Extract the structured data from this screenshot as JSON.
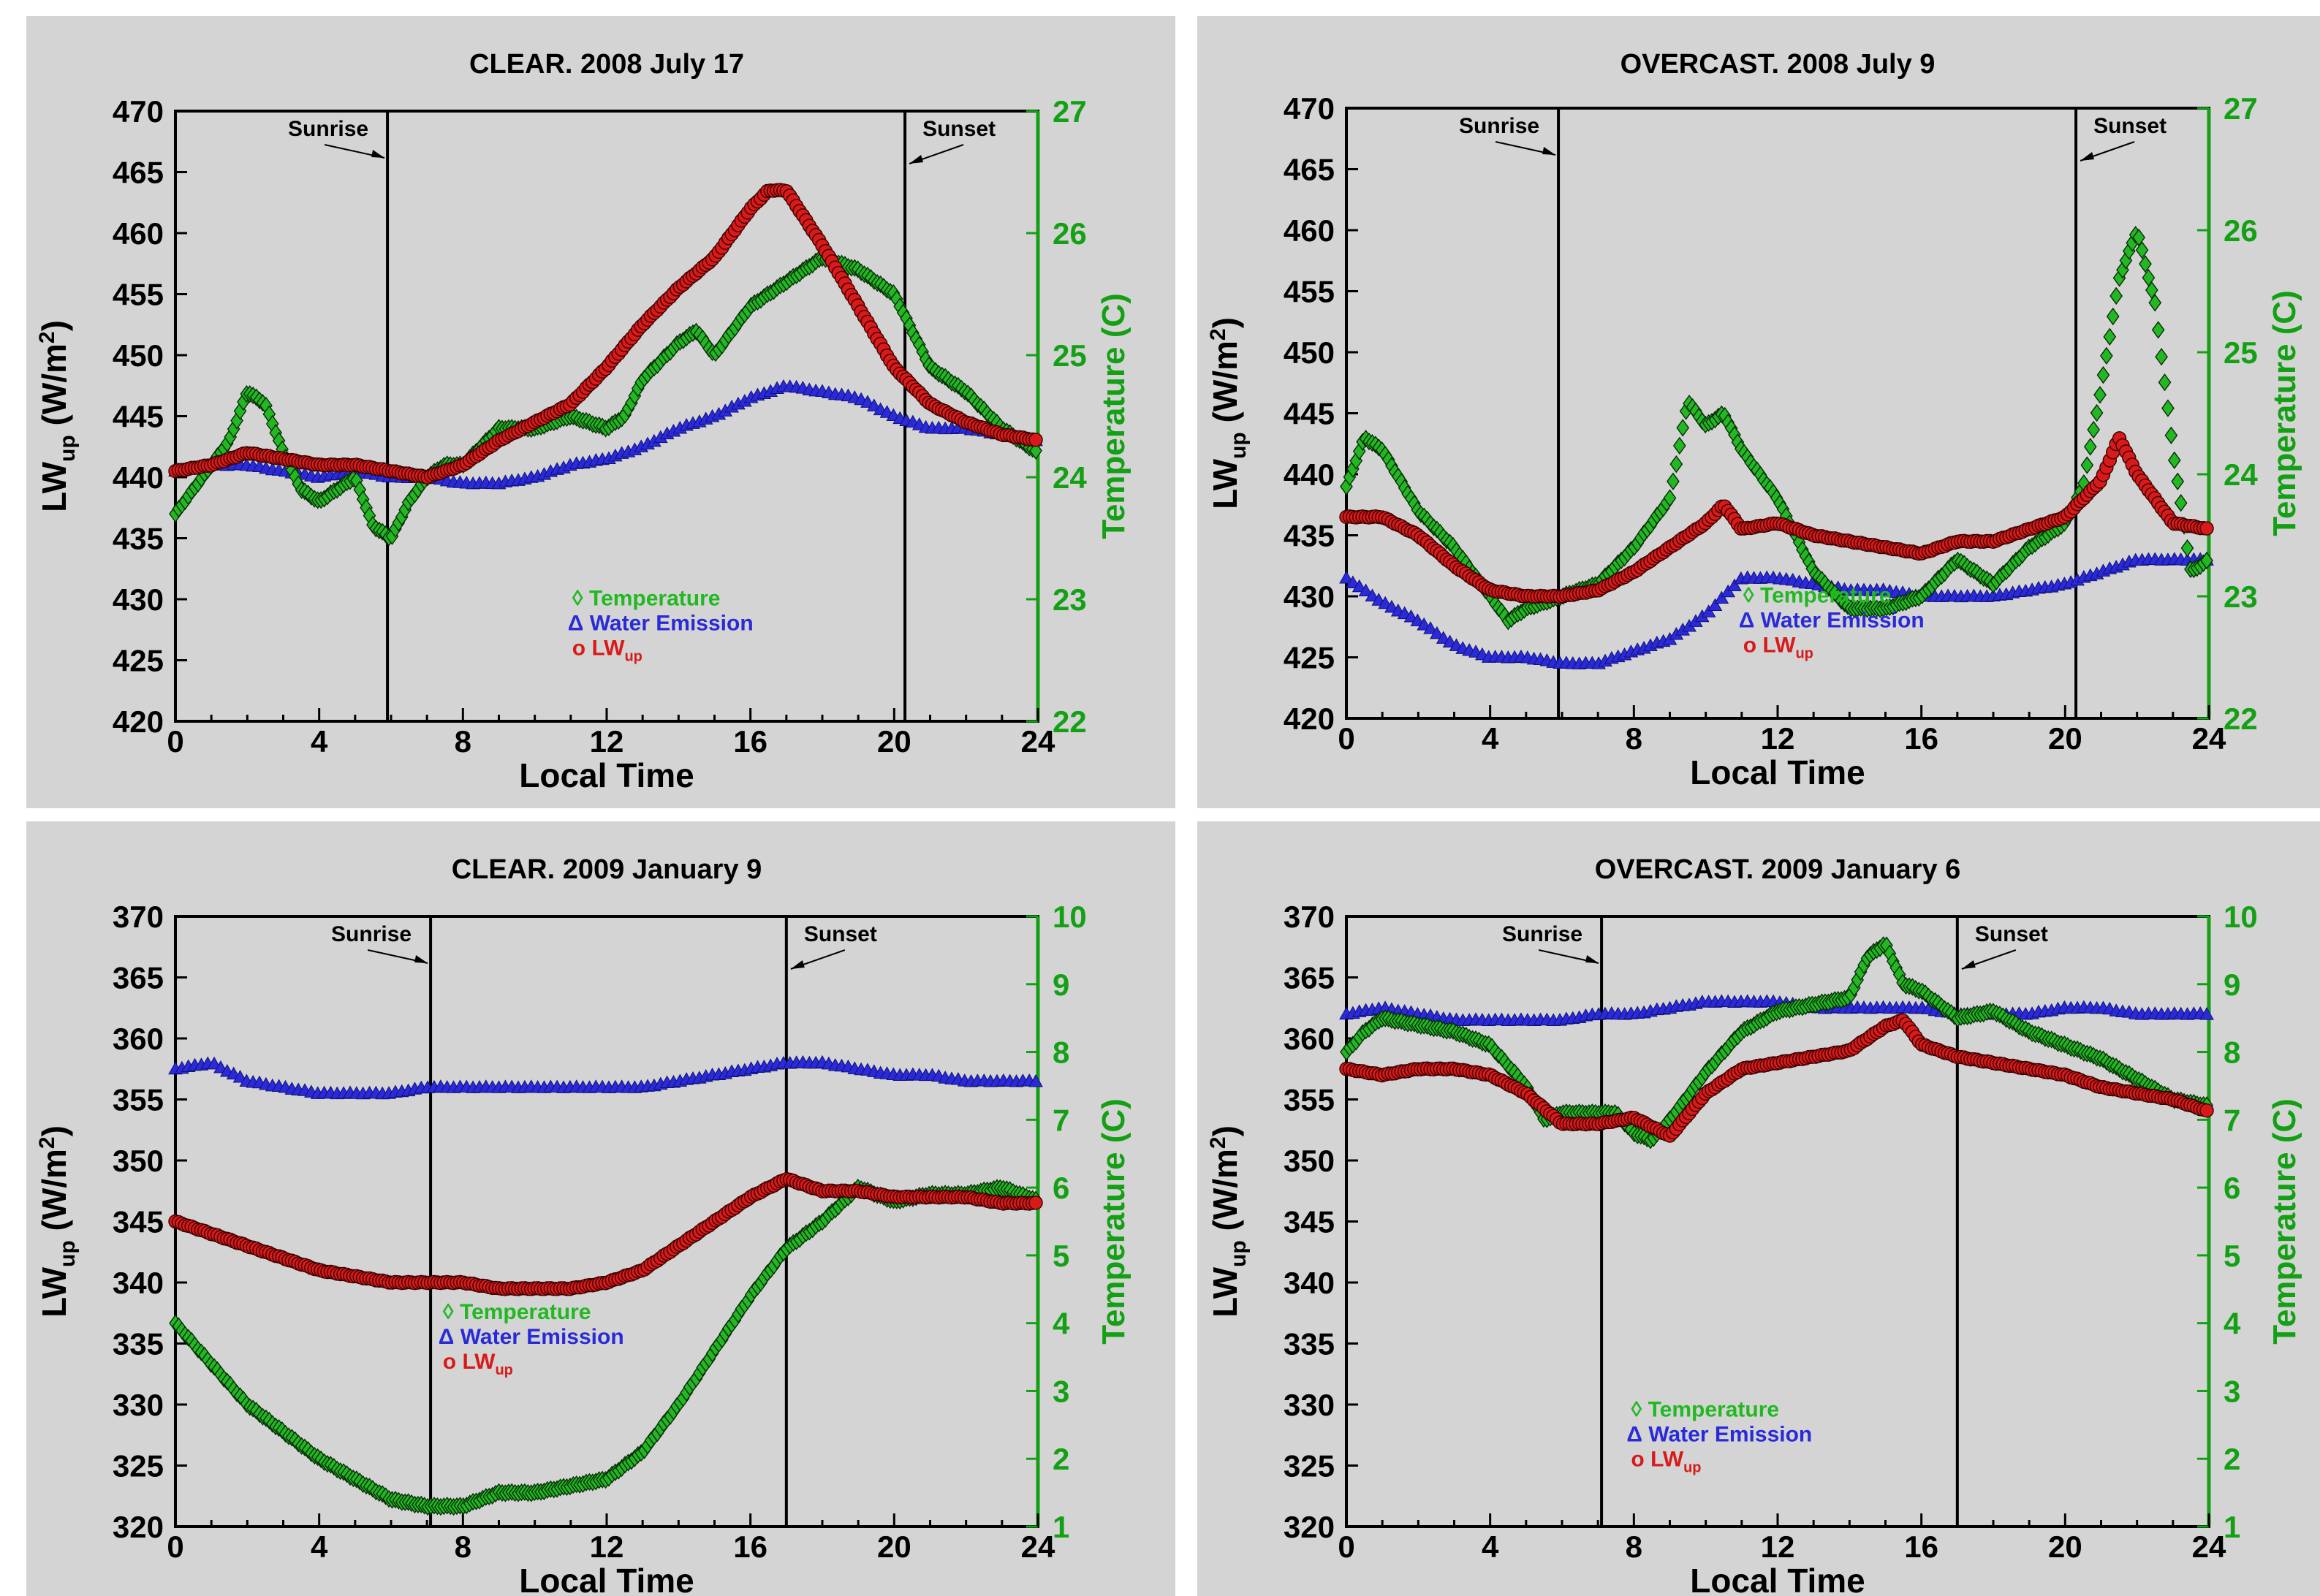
{
  "colors": {
    "temperature": "#22b822",
    "water_emission": "#2a2ad8",
    "lw_up": "#d81a1a",
    "right_axis": "#14a014",
    "panel_background": "#d4d4d4"
  },
  "legend_labels": {
    "temperature_symbol": "◊",
    "temperature": "Temperature",
    "water_symbol": "Δ",
    "water": "Water Emission",
    "lw_symbol": "o",
    "lw_main": "LW",
    "lw_sub": "up"
  },
  "axis_text": {
    "xlabel": "Local Time",
    "ylabel_main": "LW",
    "ylabel_sub": "up",
    "ylabel_unit_open": " (W/m",
    "ylabel_unit_sup": "2",
    "ylabel_unit_close": ")",
    "y2label": "Temperature (C)",
    "sunrise": "Sunrise",
    "sunset": "Sunset"
  },
  "chart_data": [
    {
      "type": "scatter",
      "title": "CLEAR.  2008 July 17",
      "x_ticks": [
        0,
        4,
        8,
        12,
        16,
        20,
        24
      ],
      "xlim": [
        0,
        24
      ],
      "ylim": [
        420,
        470
      ],
      "y_ticks": [
        420,
        425,
        430,
        435,
        440,
        445,
        450,
        455,
        460,
        465,
        470
      ],
      "y2lim": [
        22,
        27
      ],
      "y2_ticks": [
        22,
        23,
        24,
        25,
        26,
        27
      ],
      "sunrise": 5.9,
      "sunset": 20.3,
      "legend_position": "center-bottom",
      "series": [
        {
          "key": "temperature",
          "axis": "right",
          "x": [
            0,
            0.5,
            1,
            1.5,
            2,
            2.5,
            3,
            3.5,
            4,
            4.5,
            5,
            5.5,
            6,
            6.5,
            7,
            7.5,
            8,
            9,
            10,
            11,
            12,
            12.5,
            13,
            14,
            14.5,
            15,
            16,
            17,
            18,
            19,
            20,
            20.5,
            21,
            22,
            23,
            24
          ],
          "y": [
            23.7,
            23.9,
            24.1,
            24.3,
            24.7,
            24.6,
            24.2,
            23.9,
            23.8,
            23.9,
            24.0,
            23.6,
            23.5,
            23.8,
            24.0,
            24.1,
            24.1,
            24.4,
            24.4,
            24.5,
            24.4,
            24.5,
            24.8,
            25.1,
            25.2,
            25.0,
            25.4,
            25.6,
            25.8,
            25.7,
            25.5,
            25.2,
            24.9,
            24.7,
            24.4,
            24.2
          ]
        },
        {
          "key": "water_emission",
          "axis": "left",
          "x": [
            0,
            1,
            2,
            3,
            4,
            5,
            6,
            7,
            8,
            9,
            10,
            11,
            12,
            13,
            14,
            15,
            16,
            17,
            18,
            19,
            20,
            21,
            22,
            23,
            24
          ],
          "y": [
            440.5,
            441,
            441,
            440.5,
            440,
            440.5,
            440,
            440,
            439.5,
            439.5,
            440,
            441,
            441.5,
            442.5,
            444,
            445,
            446.5,
            447.5,
            447,
            446.5,
            445,
            444,
            444,
            443.5,
            443
          ]
        },
        {
          "key": "lw_up",
          "axis": "left",
          "x": [
            0,
            1,
            2,
            3,
            4,
            5,
            6,
            7,
            8,
            9,
            10,
            11,
            12,
            13,
            14,
            15,
            16,
            16.5,
            17,
            18,
            19,
            20,
            21,
            22,
            23,
            24
          ],
          "y": [
            440.5,
            441,
            442,
            441.5,
            441,
            441,
            440.5,
            440,
            441,
            443,
            444.5,
            446,
            449,
            452.5,
            455.5,
            458,
            462,
            463.5,
            463.5,
            459,
            454,
            449,
            446,
            444.5,
            443.5,
            443
          ]
        }
      ]
    },
    {
      "type": "scatter",
      "title": "OVERCAST.  2008 July 9",
      "x_ticks": [
        0,
        4,
        8,
        12,
        16,
        20,
        24
      ],
      "xlim": [
        0,
        24
      ],
      "ylim": [
        420,
        470
      ],
      "y_ticks": [
        420,
        425,
        430,
        435,
        440,
        445,
        450,
        455,
        460,
        465,
        470
      ],
      "y2lim": [
        22,
        27
      ],
      "y2_ticks": [
        22,
        23,
        24,
        25,
        26,
        27
      ],
      "sunrise": 5.9,
      "sunset": 20.3,
      "legend_position": "center-bottom",
      "series": [
        {
          "key": "temperature",
          "axis": "right",
          "x": [
            0,
            0.5,
            1,
            2,
            3,
            4,
            4.5,
            5,
            6,
            7,
            8,
            9,
            9.5,
            10,
            10.5,
            11,
            12,
            13,
            14,
            15,
            16,
            17,
            18,
            19,
            20,
            20.5,
            21,
            21.5,
            22,
            22.5,
            23,
            23.5,
            24
          ],
          "y": [
            23.9,
            24.3,
            24.2,
            23.7,
            23.4,
            23.0,
            22.8,
            22.9,
            23.0,
            23.1,
            23.4,
            23.8,
            24.6,
            24.4,
            24.5,
            24.2,
            23.8,
            23.2,
            22.9,
            22.9,
            23.0,
            23.3,
            23.1,
            23.4,
            23.6,
            23.9,
            24.7,
            25.6,
            26.0,
            25.4,
            24.2,
            23.2,
            23.3
          ]
        },
        {
          "key": "water_emission",
          "axis": "left",
          "x": [
            0,
            1,
            2,
            3,
            4,
            5,
            6,
            7,
            8,
            9,
            10,
            11,
            12,
            13,
            14,
            15,
            16,
            17,
            18,
            19,
            20,
            21,
            22,
            23,
            24
          ],
          "y": [
            431.5,
            429.5,
            428,
            426,
            425,
            425,
            424.5,
            424.5,
            425.5,
            426.5,
            428.5,
            431.5,
            431.5,
            431,
            430.5,
            430.5,
            430,
            430,
            430,
            430.5,
            431,
            432,
            433,
            433,
            433
          ]
        },
        {
          "key": "lw_up",
          "axis": "left",
          "x": [
            0,
            1,
            2,
            3,
            4,
            5,
            6,
            7,
            8,
            9,
            10,
            10.5,
            11,
            12,
            13,
            14,
            15,
            16,
            17,
            18,
            19,
            20,
            21,
            21.5,
            22,
            23,
            24
          ],
          "y": [
            436.5,
            436.5,
            435,
            432.5,
            430.5,
            430,
            430,
            430.5,
            432,
            434,
            436,
            437.5,
            435.5,
            436,
            435,
            434.5,
            434,
            433.5,
            434.5,
            434.5,
            435.5,
            436.5,
            439.5,
            443,
            440,
            436,
            435.5
          ]
        }
      ]
    },
    {
      "type": "scatter",
      "title": "CLEAR.  2009 January 9",
      "x_ticks": [
        0,
        4,
        8,
        12,
        16,
        20,
        24
      ],
      "xlim": [
        0,
        24
      ],
      "ylim": [
        320,
        370
      ],
      "y_ticks": [
        320,
        325,
        330,
        335,
        340,
        345,
        350,
        355,
        360,
        365,
        370
      ],
      "y2lim": [
        1,
        10
      ],
      "y2_ticks": [
        1,
        2,
        3,
        4,
        5,
        6,
        7,
        8,
        9,
        10
      ],
      "sunrise": 7.1,
      "sunset": 17.0,
      "legend_position": "center",
      "series": [
        {
          "key": "temperature",
          "axis": "right",
          "x": [
            0,
            1,
            2,
            3,
            4,
            5,
            6,
            7,
            8,
            9,
            10,
            11,
            12,
            13,
            14,
            15,
            16,
            17,
            18,
            19,
            20,
            21,
            22,
            23,
            24
          ],
          "y": [
            4.0,
            3.4,
            2.8,
            2.4,
            2.0,
            1.7,
            1.4,
            1.3,
            1.3,
            1.5,
            1.5,
            1.6,
            1.7,
            2.1,
            2.8,
            3.6,
            4.4,
            5.1,
            5.5,
            6.0,
            5.8,
            5.9,
            5.9,
            6.0,
            5.8
          ]
        },
        {
          "key": "water_emission",
          "axis": "left",
          "x": [
            0,
            1,
            2,
            3,
            4,
            5,
            6,
            7,
            8,
            9,
            10,
            11,
            12,
            13,
            14,
            15,
            16,
            17,
            18,
            19,
            20,
            21,
            22,
            23,
            24
          ],
          "y": [
            357.5,
            358,
            356.5,
            356,
            355.5,
            355.5,
            355.5,
            356,
            356,
            356,
            356,
            356,
            356,
            356,
            356.5,
            357,
            357.5,
            358,
            358,
            357.5,
            357,
            357,
            356.5,
            356.5,
            356.5
          ]
        },
        {
          "key": "lw_up",
          "axis": "left",
          "x": [
            0,
            1,
            2,
            3,
            4,
            5,
            6,
            7,
            8,
            9,
            10,
            11,
            12,
            13,
            14,
            15,
            16,
            17,
            18,
            19,
            20,
            21,
            22,
            23,
            24
          ],
          "y": [
            345,
            344,
            343,
            342,
            341,
            340.5,
            340,
            340,
            340,
            339.5,
            339.5,
            339.5,
            340,
            341,
            343,
            345,
            347,
            348.5,
            347.5,
            347.5,
            347,
            347,
            347,
            346.5,
            346.5
          ]
        }
      ]
    },
    {
      "type": "scatter",
      "title": "OVERCAST.  2009 January 6",
      "x_ticks": [
        0,
        4,
        8,
        12,
        16,
        20,
        24
      ],
      "xlim": [
        0,
        24
      ],
      "ylim": [
        320,
        370
      ],
      "y_ticks": [
        320,
        325,
        330,
        335,
        340,
        345,
        350,
        355,
        360,
        365,
        370
      ],
      "y2lim": [
        1,
        10
      ],
      "y2_ticks": [
        1,
        2,
        3,
        4,
        5,
        6,
        7,
        8,
        9,
        10
      ],
      "sunrise": 7.1,
      "sunset": 17.0,
      "legend_position": "bottom-left",
      "series": [
        {
          "key": "temperature",
          "axis": "right",
          "x": [
            0,
            0.5,
            1,
            2,
            3,
            4,
            5,
            5.5,
            6,
            7,
            7.5,
            8,
            8.5,
            9,
            10,
            11,
            12,
            13,
            14,
            14.5,
            15,
            15.5,
            16,
            16.5,
            17,
            18,
            19,
            20,
            21,
            22,
            23,
            24
          ],
          "y": [
            8.0,
            8.3,
            8.5,
            8.4,
            8.3,
            8.1,
            7.5,
            7.0,
            7.1,
            7.1,
            7.1,
            6.8,
            6.7,
            7.0,
            7.7,
            8.3,
            8.6,
            8.7,
            8.8,
            9.4,
            9.6,
            9.0,
            8.9,
            8.7,
            8.5,
            8.6,
            8.3,
            8.1,
            7.9,
            7.6,
            7.3,
            7.2
          ]
        },
        {
          "key": "water_emission",
          "axis": "left",
          "x": [
            0,
            1,
            2,
            3,
            4,
            5,
            6,
            7,
            8,
            9,
            10,
            11,
            12,
            13,
            14,
            15,
            16,
            17,
            18,
            19,
            20,
            21,
            22,
            23,
            24
          ],
          "y": [
            362,
            362.5,
            362,
            361.5,
            361.5,
            361.5,
            361.5,
            362,
            362,
            362.5,
            363,
            363,
            363,
            362.5,
            362.5,
            362.5,
            362.5,
            362,
            362,
            362,
            362.5,
            362.5,
            362,
            362,
            362
          ]
        },
        {
          "key": "lw_up",
          "axis": "left",
          "x": [
            0,
            1,
            2,
            3,
            4,
            5,
            6,
            7,
            8,
            9,
            10,
            11,
            12,
            13,
            14,
            15,
            15.5,
            16,
            17,
            18,
            19,
            20,
            21,
            22,
            23,
            24
          ],
          "y": [
            357.5,
            357,
            357.5,
            357.5,
            357,
            355.5,
            353,
            353,
            353.5,
            352,
            355.5,
            357.5,
            358,
            358.5,
            359,
            361,
            361.5,
            359.5,
            358.5,
            358,
            357.5,
            357,
            356,
            355.5,
            355,
            354
          ]
        }
      ]
    }
  ]
}
